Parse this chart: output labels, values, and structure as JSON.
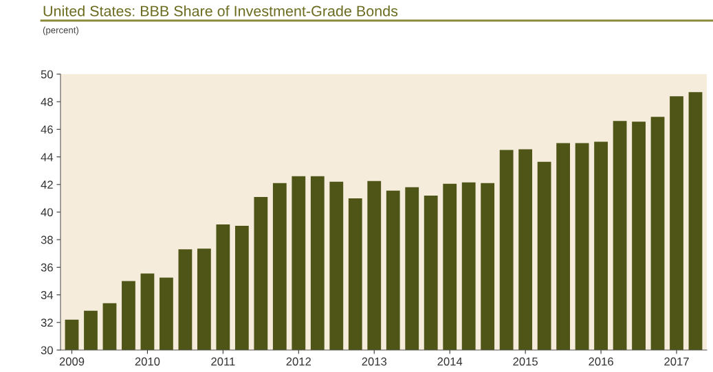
{
  "chart_data": {
    "type": "bar",
    "title": "United States: BBB Share of Investment-Grade Bonds",
    "ylabel": "(percent)",
    "categories": [
      "2009",
      null,
      null,
      null,
      "2010",
      null,
      null,
      null,
      "2011",
      null,
      null,
      null,
      "2012",
      null,
      null,
      null,
      "2013",
      null,
      null,
      null,
      "2014",
      null,
      null,
      null,
      "2015",
      null,
      null,
      null,
      "2016",
      null,
      null,
      null,
      "2017",
      null
    ],
    "values": [
      32.2,
      32.85,
      33.4,
      35.0,
      35.55,
      35.25,
      37.3,
      37.35,
      39.1,
      39.0,
      41.1,
      42.1,
      42.6,
      42.6,
      42.2,
      41.0,
      42.25,
      41.55,
      41.8,
      41.2,
      42.05,
      42.15,
      42.1,
      44.5,
      44.55,
      43.65,
      45.0,
      45.0,
      45.1,
      46.6,
      46.55,
      46.9,
      48.4,
      48.7
    ],
    "color": "#4f5417",
    "ylim": [
      30,
      50
    ],
    "yticks": [
      30,
      32,
      34,
      36,
      38,
      40,
      42,
      44,
      46,
      48,
      50
    ],
    "grid": false,
    "legend": false
  }
}
